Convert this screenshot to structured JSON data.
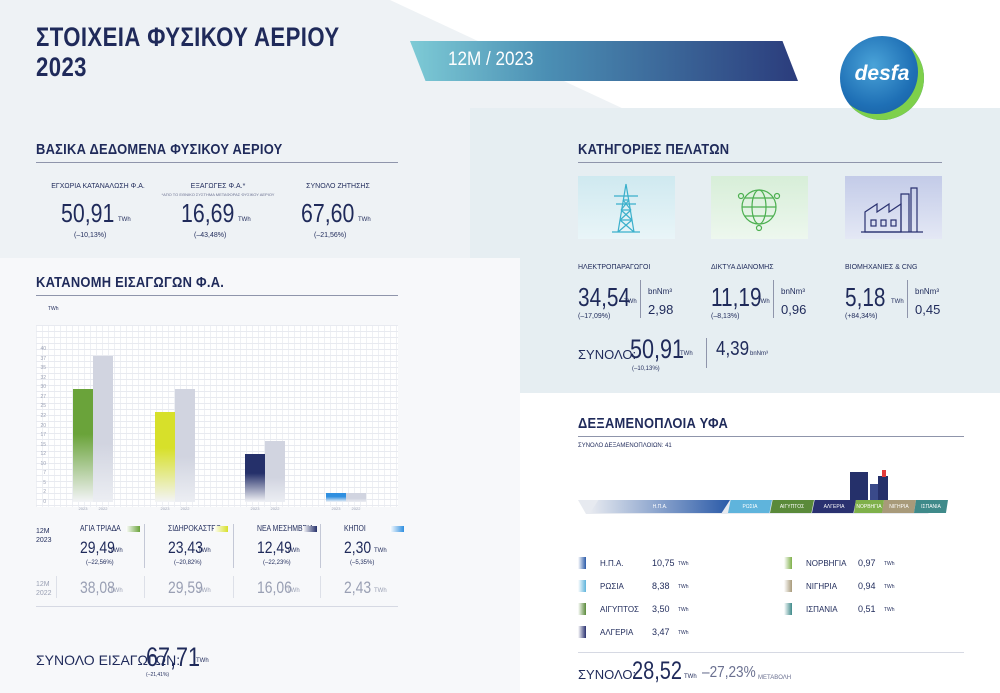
{
  "header": {
    "title_line1": "ΣΤΟΙΧΕΙΑ ΦΥΣΙΚΟΥ ΑΕΡΙΟΥ",
    "title_line2": "2023",
    "period": "12Μ / 2023",
    "logo_text": "desfa"
  },
  "basic": {
    "title": "ΒΑΣΙΚΑ ΔΕΔΟΜΕΝΑ ΦΥΣΙΚΟΥ ΑΕΡΙΟΥ",
    "items": [
      {
        "label": "ΕΓΧΩΡΙΑ ΚΑΤΑΝΑΛΩΣΗ Φ.Α.",
        "sub": "",
        "value": "50,91",
        "unit": "TWh",
        "change": "(–10,13%)"
      },
      {
        "label": "ΕΞΑΓΩΓΕΣ Φ.Α.*",
        "sub": "*ΑΠΟ ΤΟ ΕΘΝΙΚΟ ΣΥΣΤΗΜΑ ΜΕΤΑΦΟΡΑΣ ΦΥΣΙΚΟΥ ΑΕΡΙΟΥ",
        "value": "16,69",
        "unit": "TWh",
        "change": "(–43,48%)"
      },
      {
        "label": "ΣΥΝΟΛΟ ΖΗΤΗΣΗΣ",
        "sub": "",
        "value": "67,60",
        "unit": "TWh",
        "change": "(–21,56%)"
      }
    ]
  },
  "imports": {
    "title": "ΚΑΤΑΝΟΜΗ ΕΙΣΑΓΩΓΩΝ Φ.Α.",
    "unit_label": "TWh",
    "period_current": "12Μ 2023",
    "period_previous": "12Μ 2022",
    "entries": [
      {
        "name": "ΑΓΙΑ ΤΡΙΑΔΑ",
        "value": "29,49",
        "unit": "TWh",
        "change": "(–22,56%)",
        "prev": "38,08",
        "prev_unit": "TWh",
        "color": "#6aa33a"
      },
      {
        "name": "ΣΙΔΗΡΟΚΑΣΤΡΟ",
        "value": "23,43",
        "unit": "TWh",
        "change": "(–20,82%)",
        "prev": "29,59",
        "prev_unit": "TWh",
        "color": "#d7e02a"
      },
      {
        "name": "ΝΕΑ ΜΕΣΗΜΒΡΙΑ",
        "value": "12,49",
        "unit": "TWh",
        "change": "(–22,23%)",
        "prev": "16,06",
        "prev_unit": "TWh",
        "color": "#25306a"
      },
      {
        "name": "ΚΗΠΟΙ",
        "value": "2,30",
        "unit": "TWh",
        "change": "(–5,35%)",
        "prev": "2,43",
        "prev_unit": "TWh",
        "color": "#2f8fe0"
      }
    ],
    "total_label": "ΣΥΝΟΛΟ ΕΙΣΑΓΩΓΩΝ:",
    "total_value": "67,71",
    "total_unit": "TWh",
    "total_change": "(–21,41%)"
  },
  "chart_data": {
    "type": "bar",
    "categories": [
      "ΑΓΙΑ ΤΡΙΑΔΑ",
      "ΣΙΔΗΡΟΚΑΣΤΡΟ",
      "ΝΕΑ ΜΕΣΗΜΒΡΙΑ",
      "ΚΗΠΟΙ"
    ],
    "x_tick_labels": [
      "2023",
      "2022"
    ],
    "series": [
      {
        "name": "2023",
        "values": [
          29.49,
          23.43,
          12.49,
          2.3
        ]
      },
      {
        "name": "2022",
        "values": [
          38.08,
          29.59,
          16.06,
          2.43
        ]
      }
    ],
    "ylabel": "TWh",
    "ylim": [
      0,
      45
    ],
    "yticks": [
      "0",
      "2",
      "5",
      "7",
      "10",
      "12",
      "15",
      "17",
      "20",
      "22",
      "25",
      "27",
      "30",
      "32",
      "35",
      "37",
      "40"
    ],
    "grid": true
  },
  "customers": {
    "title": "ΚΑΤΗΓΟΡΙΕΣ ΠΕΛΑΤΩΝ",
    "items": [
      {
        "label": "ΗΛΕΚΤΡΟΠΑΡΑΓΩΓΟΙ",
        "value": "34,54",
        "unit": "TWh",
        "change": "(–17,09%)",
        "right_label": "bnNm³",
        "right_value": "2,98",
        "icon": "power-tower-icon"
      },
      {
        "label": "ΔΙΚΤΥΑ ΔΙΑΝΟΜΗΣ",
        "value": "11,19",
        "unit": "TWh",
        "change": "(–8,13%)",
        "right_label": "bnNm³",
        "right_value": "0,96",
        "icon": "network-globe-icon"
      },
      {
        "label": "ΒΙΟΜΗΧΑΝΙΕΣ & CNG",
        "value": "5,18",
        "unit": "TWh",
        "change": "(+84,34%)",
        "right_label": "bnNm³",
        "right_value": "0,45",
        "icon": "factory-icon"
      }
    ],
    "total_label": "ΣΥΝΟΛΟ:",
    "total_value": "50,91",
    "total_unit": "TWh",
    "total_change": "(–10,13%)",
    "total_bn": "4,39",
    "total_bn_unit": "bnNm³"
  },
  "lng": {
    "title": "ΔΕΞΑΜΕΝΟΠΛΟΙΑ ΥΦΑ",
    "subtitle": "ΣΥΝΟΛΟ ΔΕΞΑΜΕΝΟΠΛΟΙΩΝ: 41",
    "segments": [
      {
        "name": "Η.Π.Α.",
        "color": "#2a5aa8"
      },
      {
        "name": "ΡΩΣΙΑ",
        "color": "#5fb4dc"
      },
      {
        "name": "ΑΙΓΥΠΤΟΣ",
        "color": "#5a8a3a"
      },
      {
        "name": "ΑΛΓΕΡΙΑ",
        "color": "#2a3170"
      },
      {
        "name": "ΝΟΡΒΗΓΙΑ",
        "color": "#7fb04a"
      },
      {
        "name": "ΝΙΓΗΡΙΑ",
        "color": "#a89a7a"
      },
      {
        "name": "ΙΣΠΑΝΙΑ",
        "color": "#3f8a8a"
      }
    ],
    "countries_left": [
      {
        "name": "Η.Π.Α.",
        "value": "10,75",
        "unit": "TWh",
        "color": "#2a5aa8"
      },
      {
        "name": "ΡΩΣΙΑ",
        "value": "8,38",
        "unit": "TWh",
        "color": "#5fb4dc"
      },
      {
        "name": "ΑΙΓΥΠΤΟΣ",
        "value": "3,50",
        "unit": "TWh",
        "color": "#5a8a3a"
      },
      {
        "name": "ΑΛΓΕΡΙΑ",
        "value": "3,47",
        "unit": "TWh",
        "color": "#2a3170"
      }
    ],
    "countries_right": [
      {
        "name": "ΝΟΡΒΗΓΙΑ",
        "value": "0,97",
        "unit": "TWh",
        "color": "#7fb04a"
      },
      {
        "name": "ΝΙΓΗΡΙΑ",
        "value": "0,94",
        "unit": "TWh",
        "color": "#a89a7a"
      },
      {
        "name": "ΙΣΠΑΝΙΑ",
        "value": "0,51",
        "unit": "TWh",
        "color": "#3f8a8a"
      }
    ],
    "total_label": "ΣΥΝΟΛΟ:",
    "total_value": "28,52",
    "total_unit": "TWh",
    "total_change": "–27,23%",
    "total_change_label": "ΜΕΤΑΒΟΛΗ"
  }
}
